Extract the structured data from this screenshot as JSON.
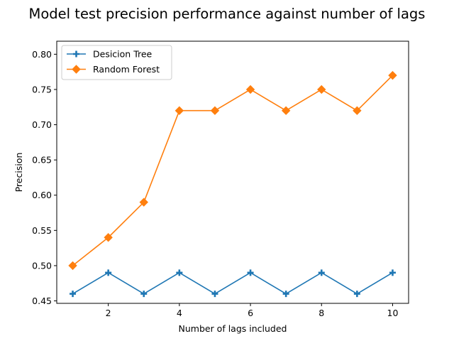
{
  "chart_data": {
    "type": "line",
    "title": "Model test precision performance against number of lags",
    "xlabel": "Number of lags included",
    "ylabel": "Precision",
    "x": [
      1,
      2,
      3,
      4,
      5,
      6,
      7,
      8,
      9,
      10
    ],
    "xlim": [
      0.55,
      10.45
    ],
    "ylim": [
      0.4465,
      0.8185
    ],
    "xticks": [
      2,
      4,
      6,
      8,
      10
    ],
    "yticks": [
      0.45,
      0.5,
      0.55,
      0.6,
      0.65,
      0.7,
      0.75,
      0.8
    ],
    "ytick_labels": [
      "0.45",
      "0.50",
      "0.55",
      "0.60",
      "0.65",
      "0.70",
      "0.75",
      "0.80"
    ],
    "grid": false,
    "legend_position": "upper-left",
    "series": [
      {
        "name": "Desicion Tree",
        "color": "#1f77b4",
        "marker": "plus",
        "values": [
          0.46,
          0.49,
          0.46,
          0.49,
          0.46,
          0.49,
          0.46,
          0.49,
          0.46,
          0.49
        ]
      },
      {
        "name": "Random Forest",
        "color": "#ff7f0e",
        "marker": "diamond",
        "values": [
          0.5,
          0.54,
          0.59,
          0.72,
          0.72,
          0.75,
          0.72,
          0.75,
          0.72,
          0.77
        ]
      }
    ]
  }
}
